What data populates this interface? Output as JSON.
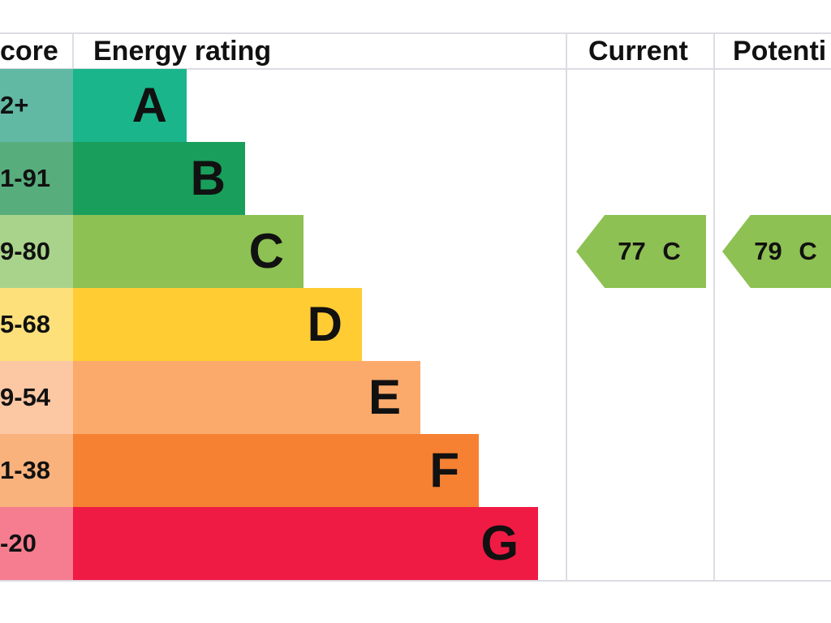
{
  "header": {
    "score": "core",
    "energy_rating": "Energy rating",
    "current": "Current",
    "potential": "Potenti"
  },
  "rows": [
    {
      "score": "2+",
      "band": "A"
    },
    {
      "score": "1-91",
      "band": "B"
    },
    {
      "score": "9-80",
      "band": "C"
    },
    {
      "score": "5-68",
      "band": "D"
    },
    {
      "score": "9-54",
      "band": "E"
    },
    {
      "score": "1-38",
      "band": "F"
    },
    {
      "score": "-20",
      "band": "G"
    }
  ],
  "current": "77 C",
  "potential": "79 C"
}
